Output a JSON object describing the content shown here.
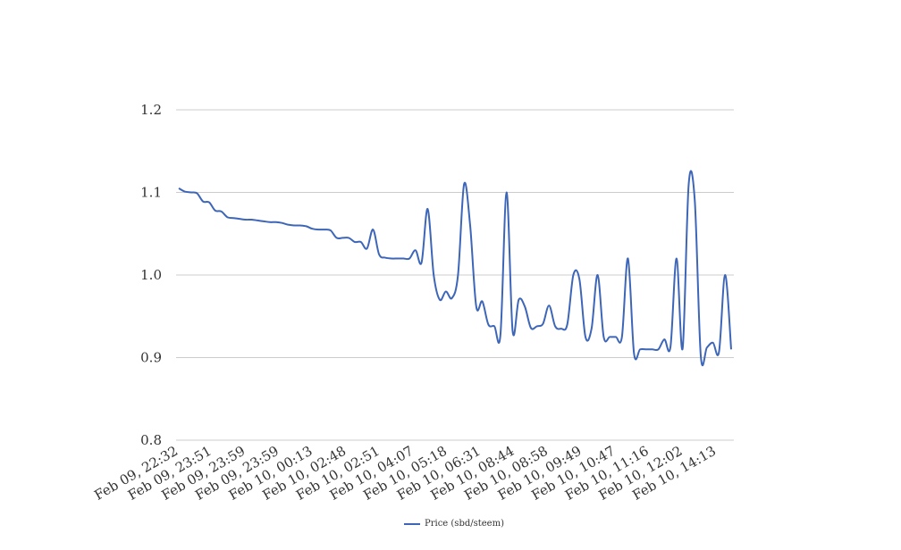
{
  "chart_data": {
    "type": "line",
    "title": "",
    "xlabel": "",
    "ylabel": "",
    "ylim": [
      0.8,
      1.2
    ],
    "yticks": [
      "0.8",
      "0.9",
      "1.0",
      "1.1",
      "1.2"
    ],
    "grid": true,
    "legend_placement": "bottom-center",
    "color": "#3d66b8",
    "x_tick_labels": [
      "Feb 09, 22:32",
      "Feb 09, 23:51",
      "Feb 09, 23:59",
      "Feb 09, 23:59",
      "Feb 10, 00:13",
      "Feb 10, 02:48",
      "Feb 10, 02:51",
      "Feb 10, 04:07",
      "Feb 10, 05:18",
      "Feb 10, 06:31",
      "Feb 10, 08:44",
      "Feb 10, 08:58",
      "Feb 10, 09:49",
      "Feb 10, 10:47",
      "Feb 10, 11:16",
      "Feb 10, 12:02",
      "Feb 10, 14:13"
    ],
    "series": [
      {
        "name": "Price (sbd/steem)",
        "values": [
          1.105,
          1.101,
          1.1,
          1.099,
          1.089,
          1.088,
          1.078,
          1.077,
          1.07,
          1.069,
          1.068,
          1.067,
          1.067,
          1.066,
          1.065,
          1.064,
          1.064,
          1.063,
          1.061,
          1.06,
          1.06,
          1.059,
          1.056,
          1.055,
          1.055,
          1.054,
          1.045,
          1.045,
          1.045,
          1.04,
          1.04,
          1.032,
          1.055,
          1.025,
          1.021,
          1.02,
          1.02,
          1.02,
          1.02,
          1.03,
          1.015,
          1.08,
          1.0,
          0.97,
          0.98,
          0.972,
          1.0,
          1.11,
          1.06,
          0.962,
          0.968,
          0.94,
          0.938,
          0.928,
          1.1,
          0.932,
          0.97,
          0.962,
          0.936,
          0.938,
          0.941,
          0.963,
          0.938,
          0.935,
          0.94,
          1.0,
          0.995,
          0.925,
          0.935,
          1.0,
          0.925,
          0.925,
          0.925,
          0.925,
          1.02,
          0.905,
          0.91,
          0.91,
          0.91,
          0.91,
          0.922,
          0.913,
          1.02,
          0.911,
          1.11,
          1.09,
          0.902,
          0.912,
          0.918,
          0.907,
          1.0,
          0.91
        ]
      }
    ]
  }
}
